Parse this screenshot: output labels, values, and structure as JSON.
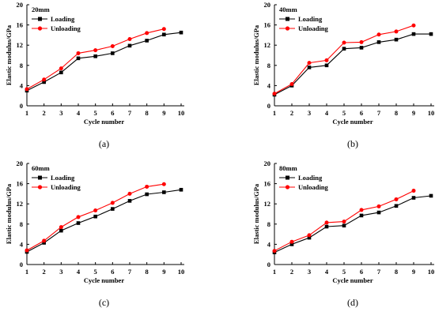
{
  "colors": {
    "loading": "#000000",
    "unloading": "#ff0000",
    "axis": "#000000"
  },
  "chart_data": [
    {
      "type": "line",
      "panel_label": "(a)",
      "annotation": "20mm",
      "xlabel": "Cycle number",
      "ylabel": "Elastic modulus/GPa",
      "xlim": [
        1,
        10
      ],
      "ylim": [
        0,
        20
      ],
      "xticks": [
        1,
        2,
        3,
        4,
        5,
        6,
        7,
        8,
        9,
        10
      ],
      "yticks": [
        0,
        4,
        8,
        12,
        16,
        20
      ],
      "legend_position": "top-left",
      "grid": false,
      "series": [
        {
          "name": "Loading",
          "color": "#000000",
          "marker": "square",
          "x": [
            1,
            2,
            3,
            4,
            5,
            6,
            7,
            8,
            9,
            10
          ],
          "y": [
            3.0,
            4.7,
            6.6,
            9.4,
            9.8,
            10.4,
            11.9,
            12.9,
            14.1,
            14.5
          ]
        },
        {
          "name": "Unloading",
          "color": "#ff0000",
          "marker": "circle",
          "x": [
            1,
            2,
            3,
            4,
            5,
            6,
            7,
            8,
            9
          ],
          "y": [
            3.3,
            5.2,
            7.4,
            10.4,
            11.0,
            11.8,
            13.2,
            14.4,
            15.2
          ]
        }
      ]
    },
    {
      "type": "line",
      "panel_label": "(b)",
      "annotation": "40mm",
      "xlabel": "Cycle number",
      "ylabel": "Elastic modulus/GPa",
      "xlim": [
        1,
        10
      ],
      "ylim": [
        0,
        20
      ],
      "xticks": [
        1,
        2,
        3,
        4,
        5,
        6,
        7,
        8,
        9,
        10
      ],
      "yticks": [
        0,
        4,
        8,
        12,
        16,
        20
      ],
      "legend_position": "top-left",
      "grid": false,
      "series": [
        {
          "name": "Loading",
          "color": "#000000",
          "marker": "square",
          "x": [
            1,
            2,
            3,
            4,
            5,
            6,
            7,
            8,
            9,
            10
          ],
          "y": [
            2.2,
            4.0,
            7.6,
            8.0,
            11.3,
            11.5,
            12.6,
            13.1,
            14.2,
            14.2
          ]
        },
        {
          "name": "Unloading",
          "color": "#ff0000",
          "marker": "circle",
          "x": [
            1,
            2,
            3,
            4,
            5,
            6,
            7,
            8,
            9
          ],
          "y": [
            2.4,
            4.3,
            8.5,
            9.0,
            12.5,
            12.6,
            14.1,
            14.7,
            15.9
          ]
        }
      ]
    },
    {
      "type": "line",
      "panel_label": "(c)",
      "annotation": "60mm",
      "xlabel": "Cycle number",
      "ylabel": "Elastic modulus/GPa",
      "xlim": [
        1,
        10
      ],
      "ylim": [
        0,
        20
      ],
      "xticks": [
        1,
        2,
        3,
        4,
        5,
        6,
        7,
        8,
        9,
        10
      ],
      "yticks": [
        0,
        4,
        8,
        12,
        16,
        20
      ],
      "legend_position": "top-left",
      "grid": false,
      "series": [
        {
          "name": "Loading",
          "color": "#000000",
          "marker": "square",
          "x": [
            1,
            2,
            3,
            4,
            5,
            6,
            7,
            8,
            9,
            10
          ],
          "y": [
            2.5,
            4.3,
            6.7,
            8.2,
            9.5,
            11.0,
            12.6,
            13.9,
            14.3,
            14.8
          ]
        },
        {
          "name": "Unloading",
          "color": "#ff0000",
          "marker": "circle",
          "x": [
            1,
            2,
            3,
            4,
            5,
            6,
            7,
            8,
            9
          ],
          "y": [
            2.8,
            4.7,
            7.4,
            9.4,
            10.7,
            12.2,
            14.0,
            15.4,
            15.9
          ]
        }
      ]
    },
    {
      "type": "line",
      "panel_label": "(d)",
      "annotation": "80mm",
      "xlabel": "Cycle number",
      "ylabel": "Elastic modulus/GPa",
      "xlim": [
        1,
        10
      ],
      "ylim": [
        0,
        20
      ],
      "xticks": [
        1,
        2,
        3,
        4,
        5,
        6,
        7,
        8,
        9,
        10
      ],
      "yticks": [
        0,
        4,
        8,
        12,
        16,
        20
      ],
      "legend_position": "top-left",
      "grid": false,
      "series": [
        {
          "name": "Loading",
          "color": "#000000",
          "marker": "square",
          "x": [
            1,
            2,
            3,
            4,
            5,
            6,
            7,
            8,
            9,
            10
          ],
          "y": [
            2.4,
            4.0,
            5.3,
            7.5,
            7.7,
            9.7,
            10.3,
            11.6,
            13.2,
            13.6
          ]
        },
        {
          "name": "Unloading",
          "color": "#ff0000",
          "marker": "circle",
          "x": [
            1,
            2,
            3,
            4,
            5,
            6,
            7,
            8,
            9
          ],
          "y": [
            2.7,
            4.5,
            5.8,
            8.3,
            8.5,
            10.8,
            11.5,
            12.9,
            14.6
          ]
        }
      ]
    }
  ]
}
